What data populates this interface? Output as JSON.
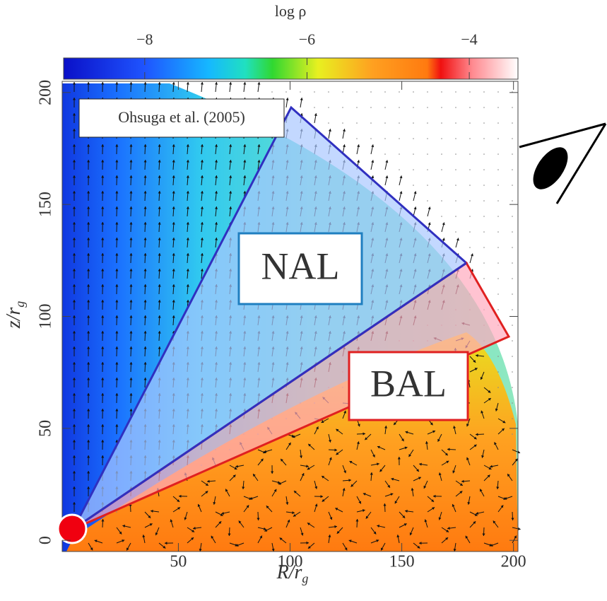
{
  "chart_data": {
    "type": "heatmap",
    "colorbar_label": "log ρ",
    "clim": [
      -9,
      -3.4
    ],
    "cticks": [
      {
        "value": -8,
        "label": "−8"
      },
      {
        "value": -6,
        "label": "−6"
      },
      {
        "value": -4,
        "label": "−4"
      }
    ],
    "xlabel": {
      "text": "R/r",
      "sub": "g"
    },
    "ylabel": {
      "text": "z/r",
      "sub": "g"
    },
    "xlim": [
      -2,
      202
    ],
    "ylim": [
      -5,
      205
    ],
    "xticks": [
      50,
      100,
      150,
      200
    ],
    "yticks": [
      0,
      50,
      100,
      150,
      200
    ],
    "annotations": [
      "Ohsuga et al. (2005)",
      "NAL",
      "BAL"
    ]
  }
}
